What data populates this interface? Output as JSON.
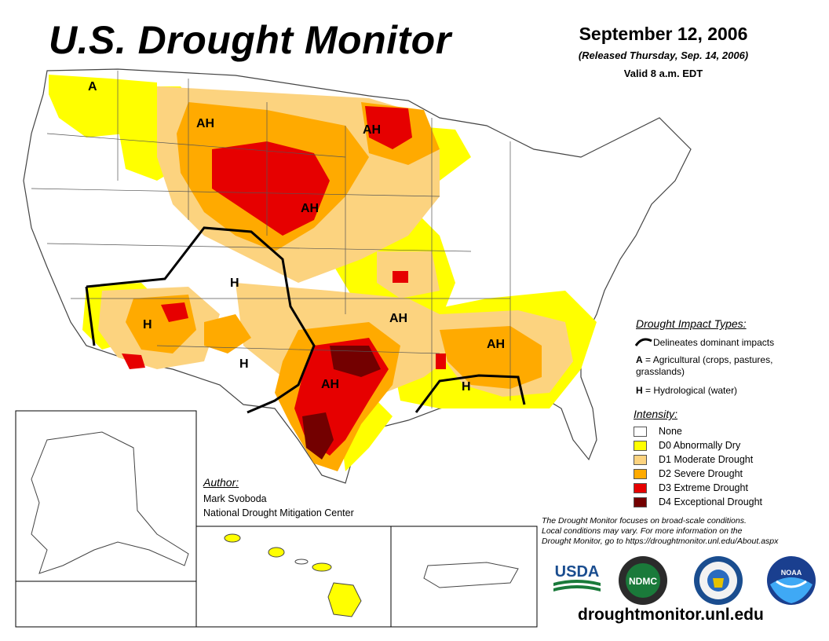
{
  "header": {
    "title": "U.S. Drought Monitor",
    "date": "September 12, 2006",
    "released": "(Released Thursday, Sep. 14, 2006)",
    "valid": "Valid 8 a.m. EDT"
  },
  "impact_types": {
    "heading": "Drought Impact Types:",
    "boundary_label": "Delineates dominant impacts",
    "agricultural_symbol": "A",
    "agricultural_text": "= Agricultural (crops, pastures, grasslands)",
    "hydrological_symbol": "H",
    "hydrological_text": "= Hydrological (water)"
  },
  "intensity": {
    "heading": "Intensity:",
    "levels": [
      {
        "label": "None",
        "color": "#ffffff"
      },
      {
        "label": "D0 Abnormally Dry",
        "color": "#ffff00"
      },
      {
        "label": "D1 Moderate Drought",
        "color": "#fcd37f"
      },
      {
        "label": "D2 Severe Drought",
        "color": "#ffaa00"
      },
      {
        "label": "D3 Extreme Drought",
        "color": "#e60000"
      },
      {
        "label": "D4 Exceptional Drought",
        "color": "#730000"
      }
    ]
  },
  "author": {
    "heading": "Author:",
    "name": "Mark Svoboda",
    "organization": "National Drought Mitigation Center"
  },
  "note": {
    "line1": "The Drought Monitor focuses on broad-scale conditions.",
    "line2": "Local conditions may vary. For more information on the",
    "line3": "Drought Monitor, go to https://droughtmonitor.unl.edu/About.aspx"
  },
  "map_labels": [
    {
      "text": "A",
      "region": "washington"
    },
    {
      "text": "AH",
      "region": "montana"
    },
    {
      "text": "AH",
      "region": "minnesota"
    },
    {
      "text": "AH",
      "region": "south-dakota-nebraska"
    },
    {
      "text": "H",
      "region": "colorado-utah"
    },
    {
      "text": "H",
      "region": "arizona"
    },
    {
      "text": "H",
      "region": "new-mexico"
    },
    {
      "text": "AH",
      "region": "oklahoma-arkansas"
    },
    {
      "text": "AH",
      "region": "texas"
    },
    {
      "text": "AH",
      "region": "georgia"
    },
    {
      "text": "H",
      "region": "gulf-coast"
    }
  ],
  "logos": {
    "usda": "USDA",
    "ndmc": "NDMC",
    "commerce": "seal-icon",
    "noaa": "NOAA"
  },
  "footer": {
    "url": "droughtmonitor.unl.edu"
  }
}
